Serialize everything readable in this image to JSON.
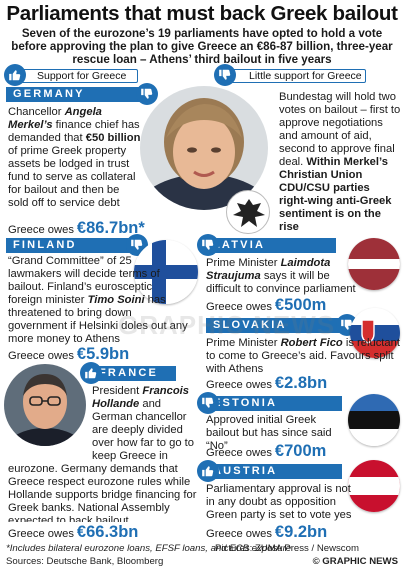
{
  "header": {
    "title": "Parliaments that must back Greek bailout",
    "subtitle": "Seven of the eurozone’s 19 parliaments have opted to hold a vote before approving the plan to give Greece an €86-87 billion, three-year rescue loan – Athens’ third bailout in five years"
  },
  "legend": {
    "support": "Support for Greece",
    "little_support": "Little support for Greece"
  },
  "owes_prefix": "Greece owes",
  "countries": {
    "germany": {
      "name": "GERMANY",
      "text1": "Chancellor ",
      "text2": "Angela Merkel’s",
      "text3": " finance chief has demanded that ",
      "text4": "€50 billion",
      "text5": " of prime Greek property assets be lodged in trust fund to serve as collateral for bailout and then be sold off to service debt",
      "right1": "Bundestag will hold two votes on bailout – first to approve negotiations and amount of aid, second to approve final deal. ",
      "right2": "Within Merkel’s Christian Union CDU/CSU parties right-wing anti-Greek sentiment is on the rise",
      "owes": "€86.7bn*"
    },
    "finland": {
      "name": "FINLAND",
      "text1": "“Grand Committee” of 25 lawmakers will decide terms of bailout. Finland’s eurosceptic foreign minister ",
      "text2": "Timo Soini",
      "text3": " has threatened to bring down government if Helsinki doles out any more money to Athens",
      "owes": "€5.9bn"
    },
    "latvia": {
      "name": "LATVIA",
      "text1": "Prime Minister ",
      "text2": "Laimdota Straujuma",
      "text3": " says it will be difficult to convince parliament",
      "owes": "€500m"
    },
    "slovakia": {
      "name": "SLOVAKIA",
      "text1": "Prime Minister ",
      "text2": "Robert Fico",
      "text3": " is reluctant to come to Greece’s aid. Favours split with Athens",
      "owes": "€2.8bn"
    },
    "france": {
      "name": "FRANCE",
      "text1": "President ",
      "text2": "Francois Hollande",
      "text3": " and German chancellor are deeply divided over how far to go to keep Greece in eurozone. Germany demands that Greece respect eurozone rules while Hollande supports bridge financing for Greek banks. National Assembly expected to back bailout",
      "owes": "€66.3bn"
    },
    "estonia": {
      "name": "ESTONIA",
      "text1": "Approved initial Greek bailout but has since said “No”",
      "owes": "€700m"
    },
    "austria": {
      "name": "AUSTRIA",
      "text1": "Parliamentary approval is not in any doubt as opposition Green party is set to vote yes",
      "owes": "€9.2bn"
    }
  },
  "footnote": "*Includes bilateral eurozone loans, EFSF loans, and ECB exposure",
  "sources": "Sources: Deutsche Bank, Bloomberg",
  "pictures": "Pictures: ZUMA Press / Newscom",
  "credit": "© GRAPHIC NEWS",
  "watermark": "GRAPHIC NEWS",
  "colors": {
    "accent": "#1f6fb4",
    "text": "#1b1b1b"
  },
  "icons": {
    "support": "thumbs-up-icon",
    "little_support": "thumbs-down-icon"
  }
}
